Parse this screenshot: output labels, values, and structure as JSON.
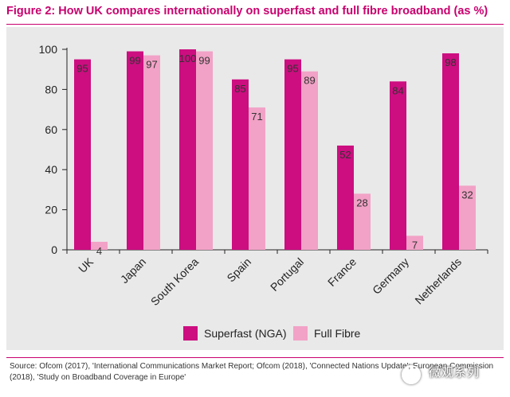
{
  "figure": {
    "title": "Figure 2:  How UK compares internationally on superfast and full fibre broadband (as %)",
    "source": "Source: Ofcom (2017), 'International Communications Market Report; Ofcom (2018), 'Connected Nations Update'; European Commission (2018), 'Study on Broadband Coverage in Europe'",
    "watermark": "微观系列"
  },
  "colors": {
    "title": "#c8006e",
    "superfast": "#cc0e80",
    "full_fibre": "#f2a2c6",
    "rule": "#c8006e",
    "chart_bg": "#e9e9e9"
  },
  "chart_data": {
    "type": "bar",
    "categories": [
      "UK",
      "Japan",
      "South Korea",
      "Spain",
      "Portugal",
      "France",
      "Germany",
      "Netherlands"
    ],
    "series": [
      {
        "name": "Superfast (NGA)",
        "values": [
          95,
          99,
          100,
          85,
          95,
          52,
          84,
          98
        ]
      },
      {
        "name": "Full Fibre",
        "values": [
          4,
          97,
          99,
          71,
          89,
          28,
          7,
          32
        ]
      }
    ],
    "ylim": [
      0,
      100
    ],
    "yticks": [
      0,
      20,
      40,
      60,
      80,
      100
    ],
    "legend_position": "bottom",
    "grid": false
  }
}
